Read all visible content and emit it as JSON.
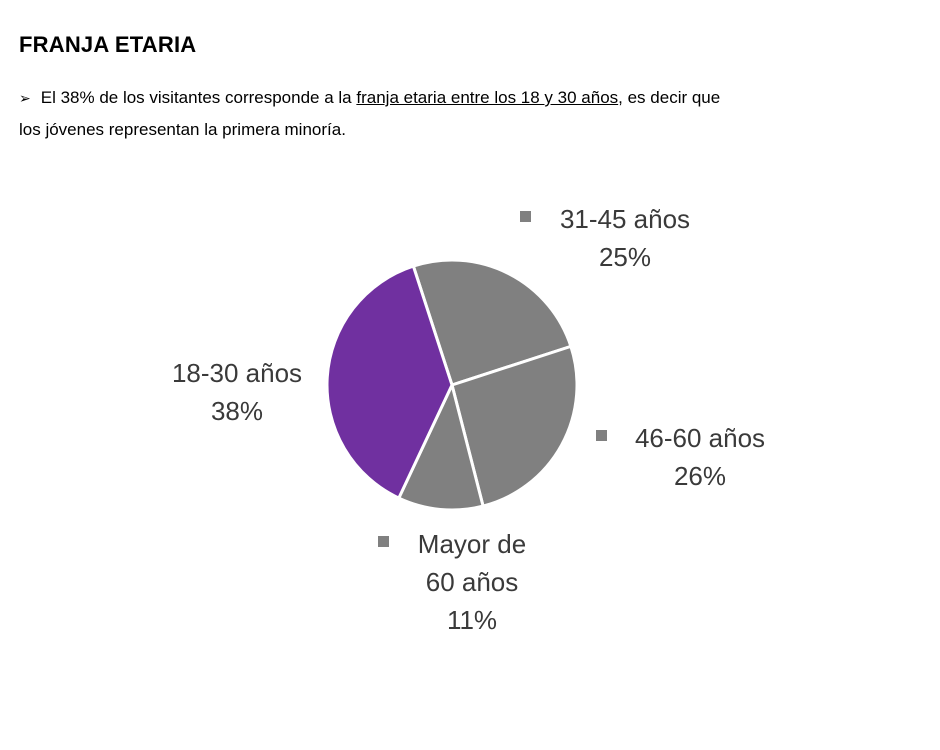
{
  "heading": "FRANJA ETARIA",
  "paragraph": {
    "bullet": "➢",
    "before": "El 38% de los visitantes corresponde a la",
    "link": "franja etaria entre los 18 y 30 años",
    "after": ", es decir que",
    "line2": "los jóvenes representan la primera minoría."
  },
  "chart_data": {
    "type": "pie",
    "slices": [
      {
        "label_lines": [
          "31-45 años"
        ],
        "pct_label": "25%",
        "value": 25,
        "color": "#808080",
        "marker": true
      },
      {
        "label_lines": [
          "46-60 años"
        ],
        "pct_label": "26%",
        "value": 26,
        "color": "#808080",
        "marker": true
      },
      {
        "label_lines": [
          "Mayor de",
          "60 años"
        ],
        "pct_label": "11%",
        "value": 11,
        "color": "#808080",
        "marker": true
      },
      {
        "label_lines": [
          "18-30 años"
        ],
        "pct_label": "38%",
        "value": 38,
        "color": "#7030a0",
        "marker": false
      }
    ]
  }
}
